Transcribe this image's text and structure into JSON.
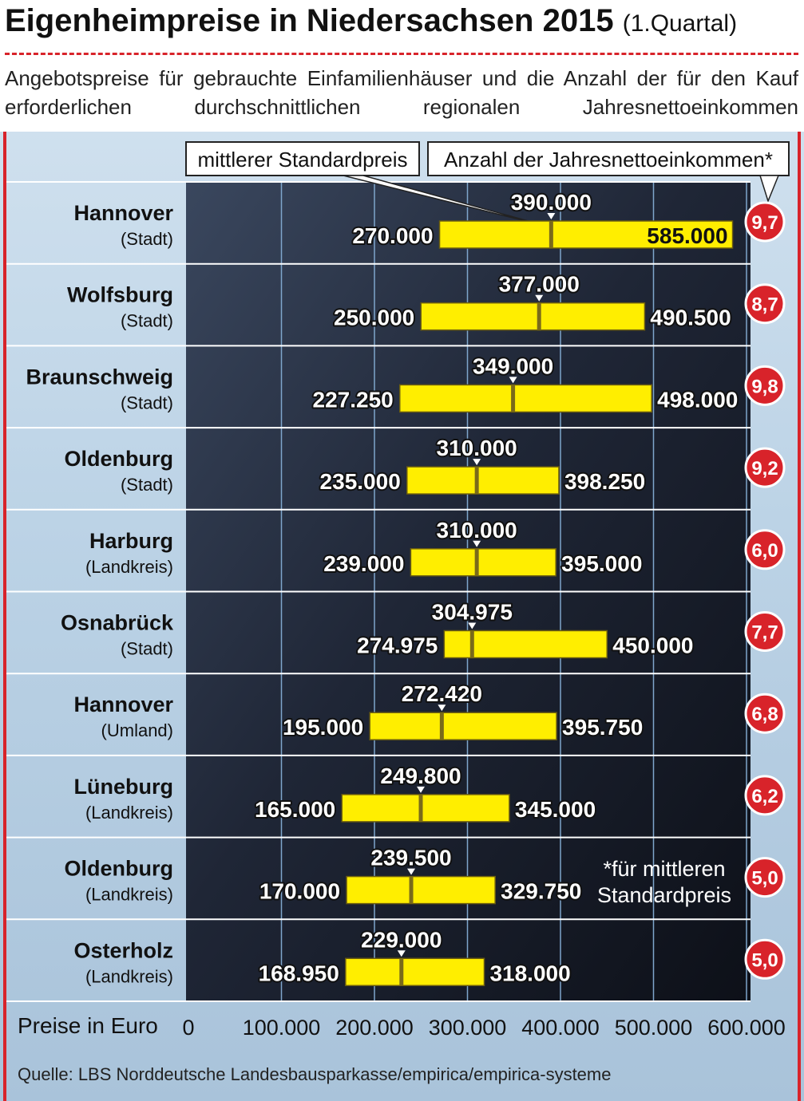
{
  "header": {
    "title": "Eigenheimpreise in Niedersachsen 2015",
    "title_suffix": "(1.Quartal)",
    "subtitle": "Angebotspreise für gebrauchte Einfamilienhäuser und die Anzahl der für den Kauf erforderlichen durchschnittlichen regionalen Jahresnettoeinkommen"
  },
  "callouts": {
    "median_label": "mittlerer Standardpreis",
    "income_label": "Anzahl der Jahresnettoeinkommen*"
  },
  "footnote": "*für mittleren Standardpreis",
  "footnote_lines": [
    "*für mittleren",
    "Standardpreis"
  ],
  "source": "Quelle: LBS Norddeutsche Landesbausparkasse/empirica/empirica-systeme",
  "colors": {
    "bar": "#ffee00",
    "median": "#7a6a1a",
    "accent": "#d8232a",
    "plot_bg": "#1c2230",
    "label_bg": "#b3cadf"
  },
  "chart_data": {
    "type": "range-bar",
    "xlabel": "Preise in Euro",
    "xlim": [
      0,
      600000
    ],
    "xticks": [
      0,
      100000,
      200000,
      300000,
      400000,
      500000,
      600000
    ],
    "xtick_labels": [
      "0",
      "100.000",
      "200.000",
      "300.000",
      "400.000",
      "500.000",
      "600.000"
    ],
    "rows": [
      {
        "name": "Hannover",
        "sub": "(Stadt)",
        "min": 270000,
        "median": 390000,
        "max": 585000,
        "min_label": "270.000",
        "median_label": "390.000",
        "max_label": "585.000",
        "income": "9,7"
      },
      {
        "name": "Wolfsburg",
        "sub": "(Stadt)",
        "min": 250000,
        "median": 377000,
        "max": 490500,
        "min_label": "250.000",
        "median_label": "377.000",
        "max_label": "490.500",
        "income": "8,7"
      },
      {
        "name": "Braunschweig",
        "sub": "(Stadt)",
        "min": 227250,
        "median": 349000,
        "max": 498000,
        "min_label": "227.250",
        "median_label": "349.000",
        "max_label": "498.000",
        "income": "9,8"
      },
      {
        "name": "Oldenburg",
        "sub": "(Stadt)",
        "min": 235000,
        "median": 310000,
        "max": 398250,
        "min_label": "235.000",
        "median_label": "310.000",
        "max_label": "398.250",
        "income": "9,2"
      },
      {
        "name": "Harburg",
        "sub": "(Landkreis)",
        "min": 239000,
        "median": 310000,
        "max": 395000,
        "min_label": "239.000",
        "median_label": "310.000",
        "max_label": "395.000",
        "income": "6,0"
      },
      {
        "name": "Osnabrück",
        "sub": "(Stadt)",
        "min": 274975,
        "median": 304975,
        "max": 450000,
        "min_label": "274.975",
        "median_label": "304.975",
        "max_label": "450.000",
        "income": "7,7"
      },
      {
        "name": "Hannover",
        "sub": "(Umland)",
        "min": 195000,
        "median": 272420,
        "max": 395750,
        "min_label": "195.000",
        "median_label": "272.420",
        "max_label": "395.750",
        "income": "6,8"
      },
      {
        "name": "Lüneburg",
        "sub": "(Landkreis)",
        "min": 165000,
        "median": 249800,
        "max": 345000,
        "min_label": "165.000",
        "median_label": "249.800",
        "max_label": "345.000",
        "income": "6,2"
      },
      {
        "name": "Oldenburg",
        "sub": "(Landkreis)",
        "min": 170000,
        "median": 239500,
        "max": 329750,
        "min_label": "170.000",
        "median_label": "239.500",
        "max_label": "329.750",
        "income": "5,0"
      },
      {
        "name": "Osterholz",
        "sub": "(Landkreis)",
        "min": 168950,
        "median": 229000,
        "max": 318000,
        "min_label": "168.950",
        "median_label": "229.000",
        "max_label": "318.000",
        "income": "5,0"
      }
    ]
  }
}
